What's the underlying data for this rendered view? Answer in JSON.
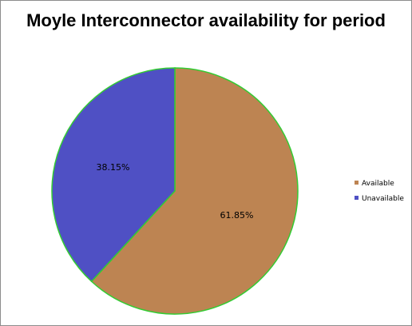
{
  "chart_data": {
    "type": "pie",
    "title": "Moyle Interconnector availability for period",
    "categories": [
      "Available",
      "Unavailable"
    ],
    "values": [
      61.85,
      38.15
    ],
    "value_labels": [
      "61.85%",
      "38.15%"
    ],
    "colors": [
      "#bd8452",
      "#4f50c4"
    ],
    "slice_border_color": "#33cc33",
    "legend_position": "right"
  }
}
